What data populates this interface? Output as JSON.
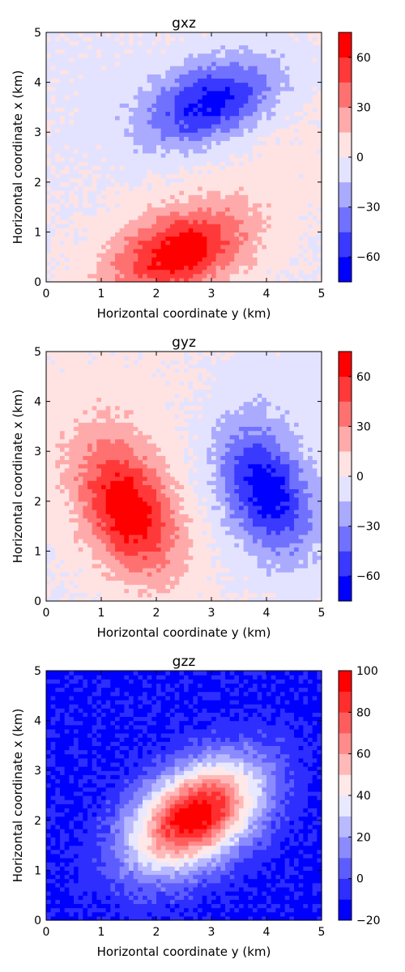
{
  "figure": {
    "description_units": "km"
  },
  "chart_data": [
    {
      "type": "heatmap",
      "title": "gxz",
      "xlabel": "Horizontal coordinate y (km)",
      "ylabel": "Horizontal coordinate x (km)",
      "xlim": [
        0,
        5
      ],
      "ylim": [
        0,
        5
      ],
      "xticks": [
        "0",
        "1",
        "2",
        "3",
        "4",
        "5"
      ],
      "yticks": [
        "0",
        "1",
        "2",
        "3",
        "4",
        "5"
      ],
      "colorbar": {
        "min": -75,
        "max": 75,
        "levels": [
          -75,
          -60,
          -45,
          -30,
          -15,
          0,
          15,
          30,
          45,
          60,
          75
        ],
        "ticks": [
          -60,
          -30,
          0,
          30,
          60
        ],
        "tick_labels": [
          "−60",
          "−30",
          "0",
          "30",
          "60"
        ],
        "colormap": "bwr"
      },
      "blobs": [
        {
          "cy": 2.4,
          "cx": 0.6,
          "amp": 72,
          "sy": 0.9,
          "sx": 0.55,
          "rot": 25
        },
        {
          "cy": 3.0,
          "cx": 3.6,
          "amp": -70,
          "sy": 0.9,
          "sx": 0.55,
          "rot": 25
        },
        {
          "cy": 3.7,
          "cx": 3.0,
          "amp": 8,
          "sy": 1.2,
          "sx": 1.0,
          "rot": 0
        },
        {
          "cy": 0.7,
          "cx": 4.0,
          "amp": -4,
          "sy": 1.0,
          "sx": 1.0,
          "rot": 0
        }
      ]
    },
    {
      "type": "heatmap",
      "title": "gyz",
      "xlabel": "Horizontal coordinate y (km)",
      "ylabel": "Horizontal coordinate x (km)",
      "xlim": [
        0,
        5
      ],
      "ylim": [
        0,
        5
      ],
      "xticks": [
        "0",
        "1",
        "2",
        "3",
        "4",
        "5"
      ],
      "yticks": [
        "0",
        "1",
        "2",
        "3",
        "4",
        "5"
      ],
      "colorbar": {
        "min": -75,
        "max": 75,
        "levels": [
          -75,
          -60,
          -45,
          -30,
          -15,
          0,
          15,
          30,
          45,
          60,
          75
        ],
        "ticks": [
          -60,
          -30,
          0,
          30,
          60
        ],
        "tick_labels": [
          "−60",
          "−30",
          "0",
          "30",
          "60"
        ],
        "colormap": "bwr"
      },
      "blobs": [
        {
          "cy": 1.5,
          "cx": 1.8,
          "amp": 72,
          "sy": 0.55,
          "sx": 0.95,
          "rot": 20
        },
        {
          "cy": 4.0,
          "cx": 2.2,
          "amp": -70,
          "sy": 0.55,
          "sx": 0.95,
          "rot": 20
        },
        {
          "cy": 1.0,
          "cx": 3.5,
          "amp": 8,
          "sy": 1.2,
          "sx": 1.2,
          "rot": 0
        },
        {
          "cy": 4.3,
          "cx": 4.3,
          "amp": -6,
          "sy": 0.8,
          "sx": 0.8,
          "rot": 0
        }
      ]
    },
    {
      "type": "heatmap",
      "title": "gzz",
      "xlabel": "Horizontal coordinate y (km)",
      "ylabel": "Horizontal coordinate x (km)",
      "xlim": [
        0,
        5
      ],
      "ylim": [
        0,
        5
      ],
      "xticks": [
        "0",
        "1",
        "2",
        "3",
        "4",
        "5"
      ],
      "yticks": [
        "0",
        "1",
        "2",
        "3",
        "4",
        "5"
      ],
      "colorbar": {
        "min": -20,
        "max": 100,
        "levels": [
          -20,
          -10,
          0,
          10,
          20,
          30,
          40,
          50,
          60,
          70,
          80,
          90,
          100
        ],
        "ticks": [
          -20,
          0,
          20,
          40,
          60,
          80,
          100
        ],
        "tick_labels": [
          "−20",
          "0",
          "20",
          "40",
          "60",
          "80",
          "100"
        ],
        "colormap": "bwr"
      },
      "blobs": [
        {
          "cy": 2.7,
          "cx": 2.1,
          "amp": 112,
          "sy": 0.95,
          "sx": 0.6,
          "rot": 40
        }
      ],
      "base": -12
    }
  ]
}
